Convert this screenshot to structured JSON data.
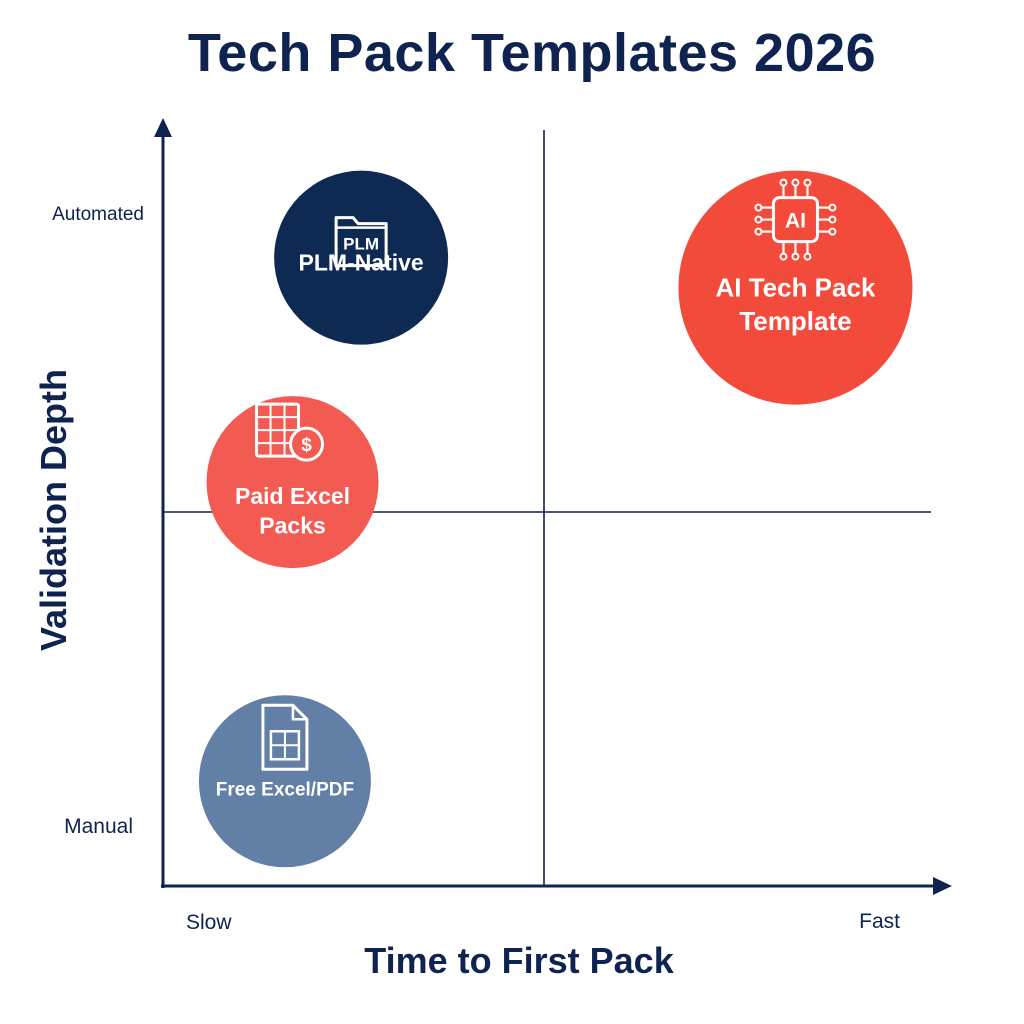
{
  "chart_data": {
    "type": "scatter",
    "title": "Tech Pack Templates 2026",
    "xlabel": "Time to First Pack",
    "ylabel": "Validation Depth",
    "xlim": [
      0,
      10
    ],
    "ylim": [
      0,
      10
    ],
    "x_tick_labels": {
      "low": "Slow",
      "high": "Fast"
    },
    "y_tick_labels": {
      "low": "Manual",
      "high": "Automated"
    },
    "quadrant_dividers": {
      "x": 5,
      "y": 5
    },
    "points": [
      {
        "label": "PLM-Native",
        "x": 2.6,
        "y": 8.4,
        "size": 87,
        "color": "#0f2a52",
        "icon": "plm-folder-icon",
        "icon_text": "PLM"
      },
      {
        "label": "AI Tech Pack Template",
        "label_lines": [
          "AI Tech Pack",
          "Template"
        ],
        "x": 8.3,
        "y": 8.0,
        "size": 117,
        "color": "#f24b3c",
        "icon": "ai-chip-icon",
        "icon_text": "AI"
      },
      {
        "label": "Paid Excel Packs",
        "label_lines": [
          "Paid Excel",
          "Packs"
        ],
        "x": 1.7,
        "y": 5.4,
        "size": 86,
        "color": "#f25a52",
        "icon": "spreadsheet-dollar-icon",
        "icon_text": "$"
      },
      {
        "label": "Free Excel/PDF",
        "x": 1.6,
        "y": 1.4,
        "size": 86,
        "color": "#627fa5",
        "icon": "document-grid-icon",
        "icon_text": ""
      }
    ]
  }
}
